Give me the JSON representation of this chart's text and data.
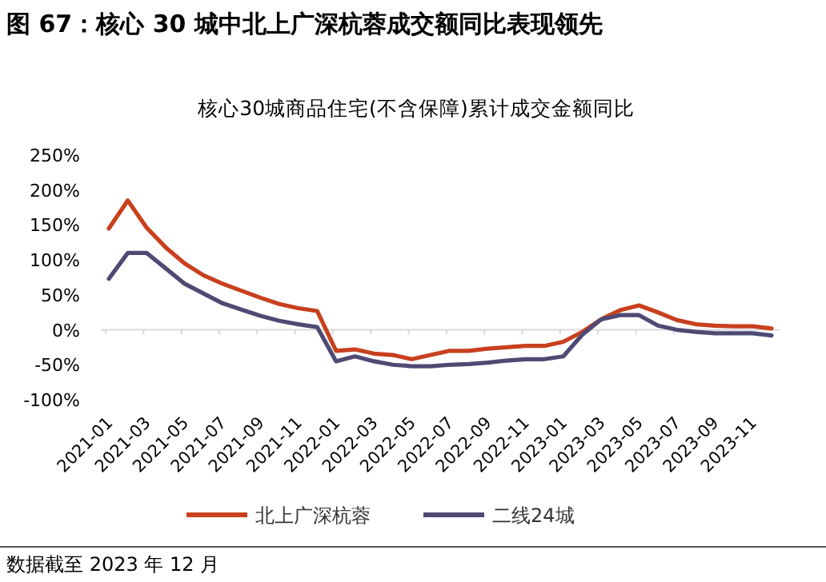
{
  "chart_data": {
    "type": "line",
    "title": "图 67：核心 30 城中北上广深杭蓉成交额同比表现领先",
    "subtitle": "核心30城商品住宅(不含保障)累计成交金额同比",
    "annotations": [
      "数据截至 2023 年 12 月"
    ],
    "categories": [
      "2021-01",
      null,
      "2021-03",
      null,
      "2021-05",
      null,
      "2021-07",
      null,
      "2021-09",
      null,
      "2021-11",
      null,
      "2022-01",
      null,
      "2022-03",
      null,
      "2022-05",
      null,
      "2022-07",
      null,
      "2022-09",
      null,
      "2022-11",
      null,
      "2023-01",
      null,
      "2023-03",
      null,
      "2023-05",
      null,
      "2023-07",
      null,
      "2023-09",
      null,
      "2023-11",
      null
    ],
    "series": [
      {
        "name": "北上广深杭蓉",
        "color": "#c8401e",
        "values": [
          145,
          185,
          146,
          118,
          95,
          78,
          66,
          56,
          46,
          37,
          31,
          27,
          -30,
          -28,
          -34,
          -36,
          -42,
          -36,
          -30,
          -30,
          -27,
          -25,
          -23,
          -23,
          -17,
          -3,
          15,
          28,
          35,
          25,
          14,
          8,
          6,
          5,
          5,
          2
        ]
      },
      {
        "name": "二线24城",
        "color": "#4e4a74",
        "values": [
          73,
          110,
          110,
          88,
          66,
          52,
          38,
          29,
          20,
          13,
          8,
          4,
          -45,
          -38,
          -45,
          -50,
          -52,
          -52,
          -50,
          -49,
          -47,
          -44,
          -42,
          -42,
          -38,
          -7,
          15,
          21,
          21,
          6,
          0,
          -3,
          -5,
          -5,
          -5,
          -8
        ]
      }
    ],
    "ylim": [
      -100,
      250
    ],
    "yticks": [
      {
        "value": -100,
        "label": "-100%"
      },
      {
        "value": -50,
        "label": "-50%"
      },
      {
        "value": 0,
        "label": "0%"
      },
      {
        "value": 50,
        "label": "50%"
      },
      {
        "value": 100,
        "label": "100%"
      },
      {
        "value": 150,
        "label": "150%"
      },
      {
        "value": 200,
        "label": "200%"
      },
      {
        "value": 250,
        "label": "250%"
      }
    ],
    "legend": "bottom"
  }
}
